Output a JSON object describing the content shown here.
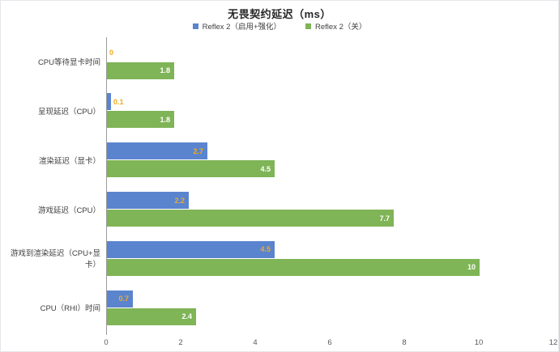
{
  "chart": {
    "title": "无畏契约延迟（ms）"
  },
  "chart_data": {
    "type": "bar",
    "orientation": "horizontal",
    "title": "无畏契约延迟（ms）",
    "xlabel": "",
    "ylabel": "",
    "categories": [
      "CPU等待显卡时间",
      "呈现延迟（CPU）",
      "渲染延迟（显卡）",
      "游戏延迟（CPU）",
      "游戏到渲染延迟（CPU+显卡）",
      "CPU（RHI）时间"
    ],
    "series": [
      {
        "name": "Reflex 2（启用+强化）",
        "color": "#5B84CE",
        "label_color": "#EDAD21",
        "values": [
          0,
          0.1,
          2.7,
          2.2,
          4.5,
          0.7
        ],
        "labels": [
          "0",
          "0.1",
          "2.7",
          "2.2",
          "4.5",
          "0.7"
        ]
      },
      {
        "name": "Reflex 2（关）",
        "color": "#7FB457",
        "label_color": "#FFFFFF",
        "values": [
          1.8,
          1.8,
          4.5,
          7.7,
          10,
          2.4
        ],
        "labels": [
          "1.8",
          "1.8",
          "4.5",
          "7.7",
          "10",
          "2.4"
        ]
      }
    ],
    "x_ticks": [
      "0",
      "2",
      "4",
      "6",
      "8",
      "10",
      "12"
    ],
    "x_tick_values": [
      0,
      2,
      4,
      6,
      8,
      10,
      12
    ],
    "xlim": [
      0,
      12
    ],
    "grid": false,
    "legend_position": "top",
    "data_labels": true,
    "colors": {
      "axis_line": "#9B9B9B",
      "tick_text": "#595959",
      "category_text": "#3F3F3F",
      "title_text": "#262626"
    }
  }
}
